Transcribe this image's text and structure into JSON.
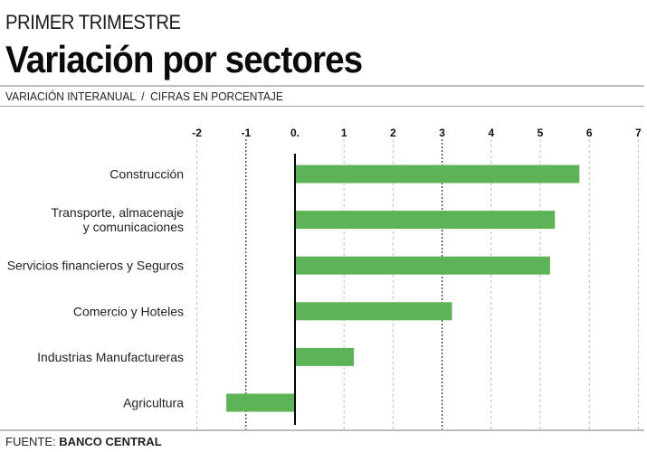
{
  "header": {
    "kicker": "PRIMER TRIMESTRE",
    "title": "Variación por sectores",
    "subtitle": "VARIACIÓN INTERANUAL  /  CIFRAS EN PORCENTAJE"
  },
  "footer": {
    "source_label": "FUENTE:",
    "source_name": "BANCO CENTRAL"
  },
  "colors": {
    "bar": "#5cb456",
    "zero_line": "#000000",
    "grid_light": "#bdbdbd",
    "grid_dark": "#000000",
    "rule": "#bdbdbd"
  },
  "chart_data": {
    "type": "bar",
    "orientation": "horizontal",
    "title": "Variación por sectores",
    "subtitle": "VARIACIÓN INTERANUAL / CIFRAS EN PORCENTAJE",
    "xlabel": "",
    "ylabel": "",
    "xlim": [
      -2,
      7
    ],
    "x_ticks": [
      -2,
      -1,
      0,
      1,
      2,
      3,
      4,
      5,
      6,
      7
    ],
    "x_tick_labels": [
      "-2",
      "-1",
      "0.",
      "1",
      "2",
      "3",
      "4",
      "5",
      "6",
      "7"
    ],
    "emphasized_gridlines": [
      -1,
      3
    ],
    "grid": true,
    "axis_position": "top",
    "categories": [
      [
        "Construcción"
      ],
      [
        "Transporte, almacenaje",
        "y comunicaciones"
      ],
      [
        "Servicios financieros y Seguros"
      ],
      [
        "Comercio y Hoteles"
      ],
      [
        "Industrias Manufactureras"
      ],
      [
        "Agricultura"
      ]
    ],
    "values": [
      5.8,
      5.3,
      5.2,
      3.2,
      1.2,
      -1.4
    ],
    "legend": null
  }
}
